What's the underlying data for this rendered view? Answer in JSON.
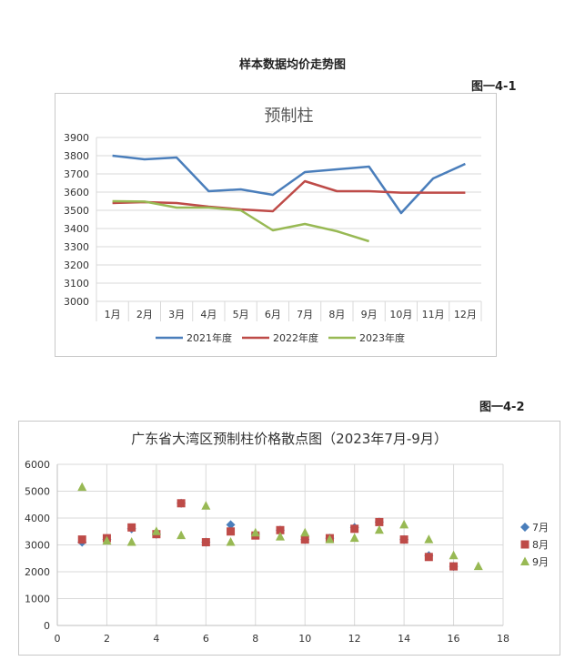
{
  "page": {
    "title": "样本数据均价走势图",
    "fig1_label": "图一4-1",
    "fig2_label": "图一4-2"
  },
  "chart_data": [
    {
      "type": "line",
      "title": "预制柱",
      "categories": [
        "1月",
        "2月",
        "3月",
        "4月",
        "5月",
        "6月",
        "7月",
        "8月",
        "9月",
        "10月",
        "11月",
        "12月"
      ],
      "ylim": [
        3000,
        3900
      ],
      "yticks": [
        3000,
        3100,
        3200,
        3300,
        3400,
        3500,
        3600,
        3700,
        3800,
        3900
      ],
      "grid": true,
      "legend": "bottom",
      "series": [
        {
          "name": "2021年度",
          "color": "#4a7ebb",
          "values": [
            3800,
            3780,
            3790,
            3605,
            3615,
            3585,
            3710,
            3725,
            3740,
            3485,
            3675,
            3755
          ]
        },
        {
          "name": "2022年度",
          "color": "#be4b48",
          "values": [
            3540,
            3545,
            3540,
            3520,
            3505,
            3495,
            3660,
            3605,
            3605,
            3597,
            3597,
            3597
          ]
        },
        {
          "name": "2023年度",
          "color": "#98b954",
          "values": [
            3550,
            3548,
            3515,
            3515,
            3500,
            3390,
            3425,
            3385,
            3330,
            null,
            null,
            null
          ]
        }
      ]
    },
    {
      "type": "scatter",
      "title": "广东省大湾区预制柱价格散点图（2023年7月-9月）",
      "xlim": [
        0,
        18
      ],
      "ylim": [
        0,
        6000
      ],
      "xticks": [
        0,
        2,
        4,
        6,
        8,
        10,
        12,
        14,
        16,
        18
      ],
      "yticks": [
        0,
        1000,
        2000,
        3000,
        4000,
        5000,
        6000
      ],
      "grid": true,
      "legend": "right",
      "series": [
        {
          "name": "7月",
          "color": "#4a7ebb",
          "marker": "diamond",
          "points": [
            [
              1,
              3100
            ],
            [
              2,
              3200
            ],
            [
              3,
              3600
            ],
            [
              4,
              3400
            ],
            [
              5,
              4550
            ],
            [
              6,
              3100
            ],
            [
              7,
              3750
            ],
            [
              8,
              3400
            ],
            [
              9,
              3550
            ],
            [
              10,
              3200
            ],
            [
              11,
              3250
            ],
            [
              12,
              3650
            ],
            [
              13,
              3850
            ],
            [
              14,
              3200
            ],
            [
              15,
              2600
            ],
            [
              16,
              2200
            ]
          ]
        },
        {
          "name": "8月",
          "color": "#be4b48",
          "marker": "square",
          "points": [
            [
              1,
              3200
            ],
            [
              2,
              3250
            ],
            [
              3,
              3650
            ],
            [
              4,
              3400
            ],
            [
              5,
              4550
            ],
            [
              6,
              3100
            ],
            [
              7,
              3500
            ],
            [
              8,
              3350
            ],
            [
              9,
              3550
            ],
            [
              10,
              3200
            ],
            [
              11,
              3250
            ],
            [
              12,
              3600
            ],
            [
              13,
              3850
            ],
            [
              14,
              3200
            ],
            [
              15,
              2550
            ],
            [
              16,
              2200
            ]
          ]
        },
        {
          "name": "9月",
          "color": "#98b954",
          "marker": "triangle",
          "points": [
            [
              1,
              5150
            ],
            [
              2,
              3150
            ],
            [
              3,
              3100
            ],
            [
              4,
              3500
            ],
            [
              5,
              3350
            ],
            [
              6,
              4450
            ],
            [
              7,
              3100
            ],
            [
              8,
              3450
            ],
            [
              9,
              3300
            ],
            [
              10,
              3450
            ],
            [
              11,
              3200
            ],
            [
              12,
              3250
            ],
            [
              13,
              3550
            ],
            [
              14,
              3750
            ],
            [
              15,
              3200
            ],
            [
              16,
              2600
            ],
            [
              17,
              2200
            ]
          ]
        }
      ]
    }
  ]
}
